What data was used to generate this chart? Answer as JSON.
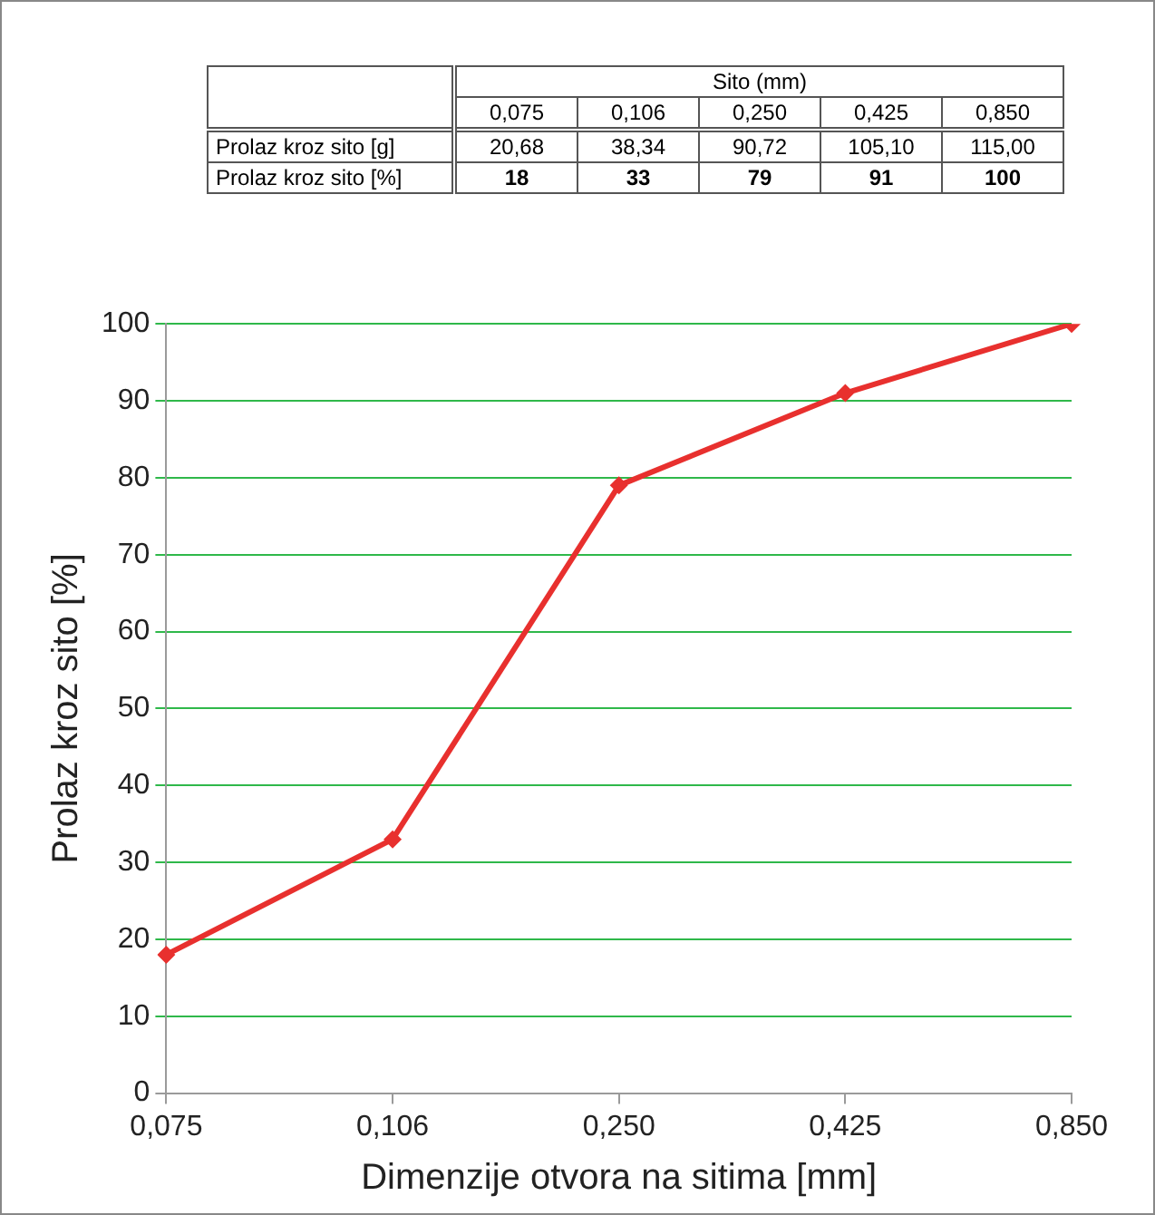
{
  "chart_data": {
    "type": "line",
    "xlabel": "Dimenzije otvora na sitima [mm]",
    "ylabel": "Prolaz kroz sito [%]",
    "categories": [
      "0,075",
      "0,106",
      "0,250",
      "0,425",
      "0,850"
    ],
    "series": [
      {
        "color": "#e8302e",
        "values": [
          18,
          33,
          79,
          91,
          100
        ]
      }
    ],
    "ylim": [
      0,
      100
    ],
    "yticks": [
      0,
      10,
      20,
      30,
      40,
      50,
      60,
      70,
      80,
      90,
      100
    ],
    "grid": "y",
    "legend": false,
    "marker": "diamond",
    "line_style": "solid",
    "annotations": [
      "Sito (mm)",
      "Prolaz kroz sito [g]",
      "20,68",
      "38,34",
      "90,72",
      "105,10",
      "115,00",
      "Prolaz kroz sito [%]",
      "18",
      "33",
      "79",
      "91",
      "100"
    ]
  }
}
